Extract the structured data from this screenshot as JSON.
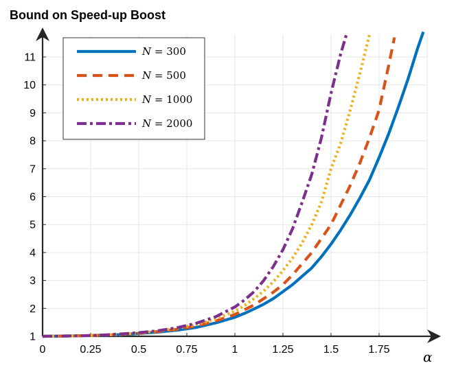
{
  "chart_data": {
    "type": "line",
    "title": "Bound on Speed-up Boost",
    "xlabel": "α",
    "ylabel": "",
    "xlim": [
      0,
      2
    ],
    "ylim": [
      1,
      11.8
    ],
    "grid": true,
    "legend_position": "top-left",
    "x_ticks": [
      "0",
      "0.25",
      "0.5",
      "0.75",
      "1",
      "1.25",
      "1.5",
      "1.75"
    ],
    "y_ticks": [
      "1",
      "2",
      "3",
      "4",
      "5",
      "6",
      "7",
      "8",
      "9",
      "10",
      "11"
    ],
    "series": [
      {
        "name": "N = 300",
        "name_parts": {
          "var": "N",
          "rest": " = 300"
        },
        "color": "#0072BD",
        "style": "solid",
        "x": [
          0,
          0.1,
          0.2,
          0.3,
          0.4,
          0.5,
          0.6,
          0.7,
          0.8,
          0.9,
          1.0,
          1.05,
          1.1,
          1.15,
          1.2,
          1.25,
          1.3,
          1.35,
          1.4,
          1.45,
          1.5,
          1.55,
          1.6,
          1.65,
          1.7,
          1.75,
          1.8,
          1.85,
          1.9,
          1.95,
          1.98
        ],
        "y": [
          1,
          1.01,
          1.02,
          1.04,
          1.06,
          1.1,
          1.15,
          1.22,
          1.32,
          1.48,
          1.68,
          1.82,
          1.98,
          2.15,
          2.35,
          2.6,
          2.85,
          3.15,
          3.45,
          3.85,
          4.3,
          4.8,
          5.35,
          5.95,
          6.6,
          7.4,
          8.25,
          9.2,
          10.2,
          11.3,
          11.9
        ]
      },
      {
        "name": "N = 500",
        "name_parts": {
          "var": "N",
          "rest": " = 500"
        },
        "color": "#D95319",
        "style": "dashed",
        "x": [
          0,
          0.1,
          0.2,
          0.3,
          0.4,
          0.5,
          0.6,
          0.7,
          0.8,
          0.9,
          1.0,
          1.05,
          1.1,
          1.15,
          1.2,
          1.25,
          1.3,
          1.35,
          1.4,
          1.45,
          1.5,
          1.55,
          1.6,
          1.65,
          1.7,
          1.75,
          1.8,
          1.83
        ],
        "y": [
          1,
          1.01,
          1.02,
          1.04,
          1.07,
          1.11,
          1.17,
          1.25,
          1.37,
          1.55,
          1.78,
          1.95,
          2.12,
          2.35,
          2.58,
          2.85,
          3.2,
          3.6,
          4.0,
          4.5,
          5.0,
          5.7,
          6.4,
          7.2,
          8.1,
          9.1,
          10.7,
          11.7
        ]
      },
      {
        "name": "N = 1000",
        "name_parts": {
          "var": "N",
          "rest": " = 1000"
        },
        "color": "#EDB120",
        "style": "dotted",
        "x": [
          0,
          0.1,
          0.2,
          0.3,
          0.4,
          0.5,
          0.6,
          0.7,
          0.8,
          0.9,
          1.0,
          1.05,
          1.1,
          1.15,
          1.2,
          1.25,
          1.3,
          1.35,
          1.4,
          1.45,
          1.5,
          1.55,
          1.6,
          1.65,
          1.7
        ],
        "y": [
          1,
          1.01,
          1.02,
          1.04,
          1.07,
          1.12,
          1.19,
          1.29,
          1.42,
          1.62,
          1.9,
          2.1,
          2.35,
          2.62,
          2.95,
          3.35,
          3.8,
          4.35,
          5.0,
          5.8,
          7.0,
          7.9,
          9.1,
          10.4,
          11.8
        ]
      },
      {
        "name": "N = 2000",
        "name_parts": {
          "var": "N",
          "rest": " = 2000"
        },
        "color": "#7E2F8E",
        "style": "dashdot",
        "x": [
          0,
          0.1,
          0.2,
          0.3,
          0.4,
          0.5,
          0.6,
          0.7,
          0.8,
          0.9,
          1.0,
          1.05,
          1.1,
          1.15,
          1.2,
          1.25,
          1.3,
          1.35,
          1.4,
          1.45,
          1.5,
          1.55,
          1.58
        ],
        "y": [
          1,
          1.01,
          1.02,
          1.04,
          1.08,
          1.13,
          1.2,
          1.31,
          1.47,
          1.7,
          2.05,
          2.3,
          2.6,
          3.0,
          3.5,
          4.1,
          4.85,
          5.8,
          6.8,
          8.1,
          9.7,
          11.1,
          11.8
        ]
      }
    ]
  }
}
